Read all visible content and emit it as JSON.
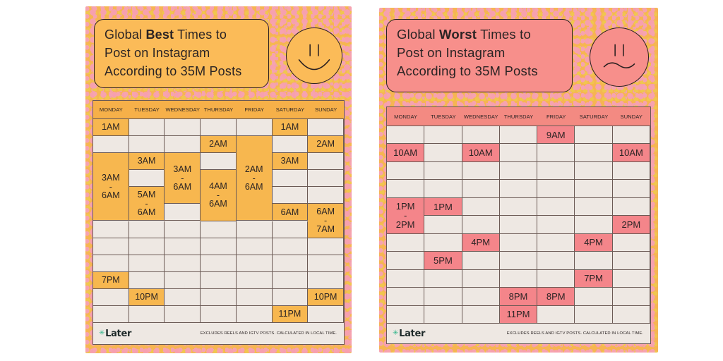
{
  "best": {
    "title_lines": [
      [
        {
          "t": "Global "
        },
        {
          "t": "Best",
          "b": true
        },
        {
          "t": " Times to"
        }
      ],
      [
        {
          "t": "Post on Instagram"
        }
      ],
      [
        {
          "t": "According to 35M Posts"
        }
      ]
    ],
    "face": "smiley-face-icon",
    "days": [
      "MONDAY",
      "TUESDAY",
      "WEDNESDAY",
      "THURSDAY",
      "FRIDAY",
      "SATURDAY",
      "SUNDAY"
    ],
    "rows": 12,
    "slots": [
      {
        "day": 0,
        "row": 0,
        "span": 1,
        "label": "1AM"
      },
      {
        "day": 5,
        "row": 0,
        "span": 1,
        "label": "1AM"
      },
      {
        "day": 3,
        "row": 1,
        "span": 1,
        "label": "2AM"
      },
      {
        "day": 6,
        "row": 1,
        "span": 1,
        "label": "2AM"
      },
      {
        "day": 1,
        "row": 2,
        "span": 1,
        "label": "3AM"
      },
      {
        "day": 5,
        "row": 2,
        "span": 1,
        "label": "3AM"
      },
      {
        "day": 0,
        "row": 2,
        "span": 4,
        "label": "3AM\n-\n6AM"
      },
      {
        "day": 2,
        "row": 2,
        "span": 3,
        "label": "3AM\n-\n6AM"
      },
      {
        "day": 4,
        "row": 1,
        "span": 5,
        "label": "2AM\n-\n6AM"
      },
      {
        "day": 3,
        "row": 3,
        "span": 3,
        "label": "4AM\n-\n6AM"
      },
      {
        "day": 1,
        "row": 4,
        "span": 2,
        "label": "5AM\n-\n6AM"
      },
      {
        "day": 5,
        "row": 5,
        "span": 1,
        "label": "6AM"
      },
      {
        "day": 6,
        "row": 5,
        "span": 2,
        "label": "6AM\n-\n7AM"
      },
      {
        "day": 0,
        "row": 9,
        "span": 1,
        "label": "7PM"
      },
      {
        "day": 1,
        "row": 10,
        "span": 1,
        "label": "10PM"
      },
      {
        "day": 6,
        "row": 10,
        "span": 1,
        "label": "10PM"
      },
      {
        "day": 5,
        "row": 11,
        "span": 1,
        "label": "11PM"
      }
    ],
    "logo": "Later",
    "note": "EXCLUDES REELS AND IGTV POSTS. CALCULATED IN LOCAL TIME."
  },
  "worst": {
    "title_lines": [
      [
        {
          "t": "Global "
        },
        {
          "t": "Worst",
          "b": true
        },
        {
          "t": " Times to"
        }
      ],
      [
        {
          "t": "Post on Instagram"
        }
      ],
      [
        {
          "t": "According to 35M Posts"
        }
      ]
    ],
    "face": "frowning-face-icon",
    "days": [
      "MONDAY",
      "TUESDAY",
      "WEDNESDAY",
      "THURSDAY",
      "FRIDAY",
      "SATURDAY",
      "SUNDAY"
    ],
    "rows": 11,
    "slots": [
      {
        "day": 4,
        "row": 0,
        "span": 1,
        "label": "9AM"
      },
      {
        "day": 0,
        "row": 1,
        "span": 1,
        "label": "10AM"
      },
      {
        "day": 2,
        "row": 1,
        "span": 1,
        "label": "10AM"
      },
      {
        "day": 6,
        "row": 1,
        "span": 1,
        "label": "10AM"
      },
      {
        "day": 0,
        "row": 4,
        "span": 2,
        "label": "1PM\n-\n2PM"
      },
      {
        "day": 1,
        "row": 4,
        "span": 1,
        "label": "1PM"
      },
      {
        "day": 6,
        "row": 5,
        "span": 1,
        "label": "2PM"
      },
      {
        "day": 2,
        "row": 6,
        "span": 1,
        "label": "4PM"
      },
      {
        "day": 5,
        "row": 6,
        "span": 1,
        "label": "4PM"
      },
      {
        "day": 1,
        "row": 7,
        "span": 1,
        "label": "5PM"
      },
      {
        "day": 5,
        "row": 8,
        "span": 1,
        "label": "7PM"
      },
      {
        "day": 3,
        "row": 9,
        "span": 1,
        "label": "8PM"
      },
      {
        "day": 4,
        "row": 9,
        "span": 1,
        "label": "8PM"
      },
      {
        "day": 3,
        "row": 10,
        "span": 1,
        "label": "11PM"
      }
    ],
    "logo": "Later",
    "note": "EXCLUDES REELS AND IGTV POSTS. CALCULATED IN LOCAL TIME."
  }
}
